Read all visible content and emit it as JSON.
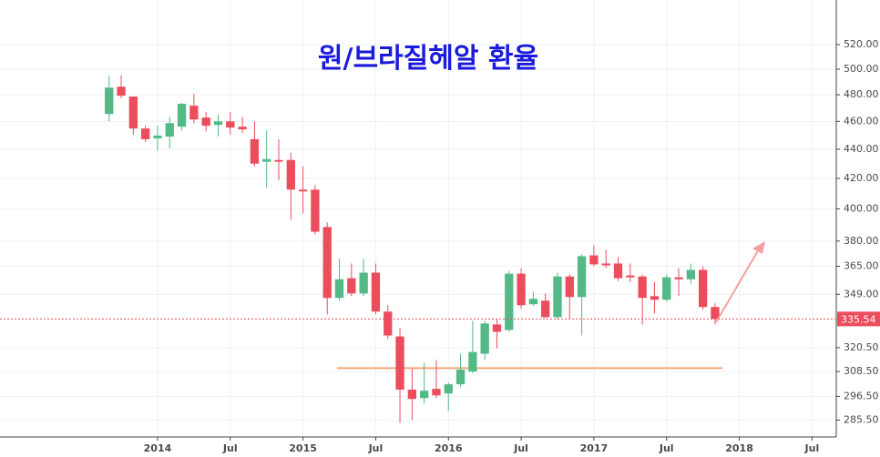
{
  "chart_data": {
    "type": "candlestick",
    "title": "원/브라질헤알 환율",
    "x": [
      "2013-09",
      "2013-10",
      "2013-11",
      "2013-12",
      "2014-01",
      "2014-02",
      "2014-03",
      "2014-04",
      "2014-05",
      "2014-06",
      "2014-07",
      "2014-08",
      "2014-09",
      "2014-10",
      "2014-11",
      "2014-12",
      "2015-01",
      "2015-02",
      "2015-03",
      "2015-04",
      "2015-05",
      "2015-06",
      "2015-07",
      "2015-08",
      "2015-09",
      "2015-10",
      "2015-11",
      "2015-12",
      "2016-01",
      "2016-02",
      "2016-03",
      "2016-04",
      "2016-05",
      "2016-06",
      "2016-07",
      "2016-08",
      "2016-09",
      "2016-10",
      "2016-11",
      "2016-12",
      "2017-01",
      "2017-02",
      "2017-03",
      "2017-04",
      "2017-05",
      "2017-06",
      "2017-07",
      "2017-08",
      "2017-09",
      "2017-10",
      "2017-11"
    ],
    "open": [
      465.5,
      486.2,
      478.6,
      454.8,
      447.7,
      449,
      456.1,
      471.7,
      462.8,
      457.4,
      460,
      456.1,
      447.1,
      431.3,
      432.5,
      432.5,
      412.5,
      412.5,
      388.6,
      347,
      358.1,
      349.5,
      361.3,
      339.5,
      326.3,
      299.7,
      295.7,
      300.1,
      297.9,
      302.3,
      308.5,
      317.4,
      332.6,
      329.7,
      360.7,
      343.5,
      345.5,
      336.5,
      359.1,
      347.5,
      371.4,
      366.6,
      366.6,
      359.7,
      359.1,
      348,
      346,
      358.6,
      357.5,
      362.9,
      342
    ],
    "high": [
      494.5,
      495.2,
      478.6,
      456.8,
      456.8,
      463.4,
      473.8,
      480.7,
      466.9,
      464.8,
      466.9,
      463.4,
      460,
      453.5,
      447.1,
      437.5,
      428.1,
      415.6,
      391.4,
      369.3,
      366.6,
      369.3,
      366.6,
      343,
      330.7,
      309.8,
      313,
      314.3,
      303.2,
      317.4,
      334.6,
      334.6,
      335.5,
      362.3,
      363.9,
      350.5,
      349.5,
      361.3,
      360.2,
      372,
      377.3,
      374.6,
      370.4,
      366.6,
      360.2,
      355.9,
      360.2,
      363.9,
      366.6,
      365,
      344
    ],
    "low": [
      460,
      477.2,
      450.3,
      445.2,
      438.8,
      440.6,
      453.5,
      458.7,
      452.9,
      449,
      450.3,
      451.6,
      428.1,
      413.8,
      418.8,
      393.1,
      397.1,
      384,
      338,
      345.5,
      348,
      348,
      338,
      324.9,
      284.3,
      285.5,
      293.2,
      295.7,
      289.6,
      301,
      307.6,
      314.3,
      320.1,
      328.7,
      341,
      342.5,
      336,
      335,
      335.5,
      326.8,
      365,
      363.9,
      356.5,
      355.9,
      332.6,
      338.5,
      345,
      348,
      354.9,
      340.5,
      332.6
    ],
    "close": [
      485.5,
      479.3,
      454.8,
      447.1,
      449.7,
      458.7,
      473.1,
      461.4,
      456.8,
      460,
      455.5,
      454.2,
      430,
      433.1,
      431.3,
      412.5,
      411.3,
      385.7,
      347,
      357.5,
      349.5,
      361.3,
      339.5,
      326.8,
      299.7,
      295.3,
      299.2,
      297,
      302.3,
      309.4,
      318.3,
      333.1,
      328.7,
      360.7,
      343,
      346.5,
      336.5,
      359.1,
      347.5,
      370.9,
      366.1,
      365.5,
      358.1,
      358.6,
      347,
      346,
      358.6,
      357.5,
      362.9,
      342,
      335.54
    ],
    "colors": {
      "up": "#53b987",
      "down": "#eb4d5c"
    },
    "last_price": 335.54,
    "last_price_color": "#eb4d5c",
    "hlines": [
      {
        "value": 310.2,
        "color": "#f0a87a"
      }
    ],
    "log_scale": true,
    "grid": true,
    "ylim": [
      277.9,
      558.4
    ],
    "yticks": [
      {
        "value": 285.5,
        "label": "285.50"
      },
      {
        "value": 296.5,
        "label": "296.50"
      },
      {
        "value": 308.5,
        "label": "308.50"
      },
      {
        "value": 320.5,
        "label": "320.50"
      },
      {
        "value": 349,
        "label": "349.00"
      },
      {
        "value": 365,
        "label": "365.00"
      },
      {
        "value": 380,
        "label": "380.00"
      },
      {
        "value": 400,
        "label": "400.00"
      },
      {
        "value": 420,
        "label": "420.00"
      },
      {
        "value": 440,
        "label": "440.00"
      },
      {
        "value": 460,
        "label": "460.00"
      },
      {
        "value": 480,
        "label": "480.00"
      },
      {
        "value": 500,
        "label": "500.00"
      },
      {
        "value": 520,
        "label": "520.00"
      }
    ],
    "xlim": [
      "2012-12",
      "2018-09"
    ],
    "xticks": [
      {
        "value": "2014-01",
        "label": "2014"
      },
      {
        "value": "2014-07",
        "label": "Jul"
      },
      {
        "value": "2015-01",
        "label": "2015"
      },
      {
        "value": "2015-07",
        "label": "Jul"
      },
      {
        "value": "2016-01",
        "label": "2016"
      },
      {
        "value": "2016-07",
        "label": "Jul"
      },
      {
        "value": "2017-01",
        "label": "2017"
      },
      {
        "value": "2017-07",
        "label": "Jul"
      },
      {
        "value": "2018-01",
        "label": "2018"
      },
      {
        "value": "2018-07",
        "label": "Jul"
      }
    ]
  }
}
